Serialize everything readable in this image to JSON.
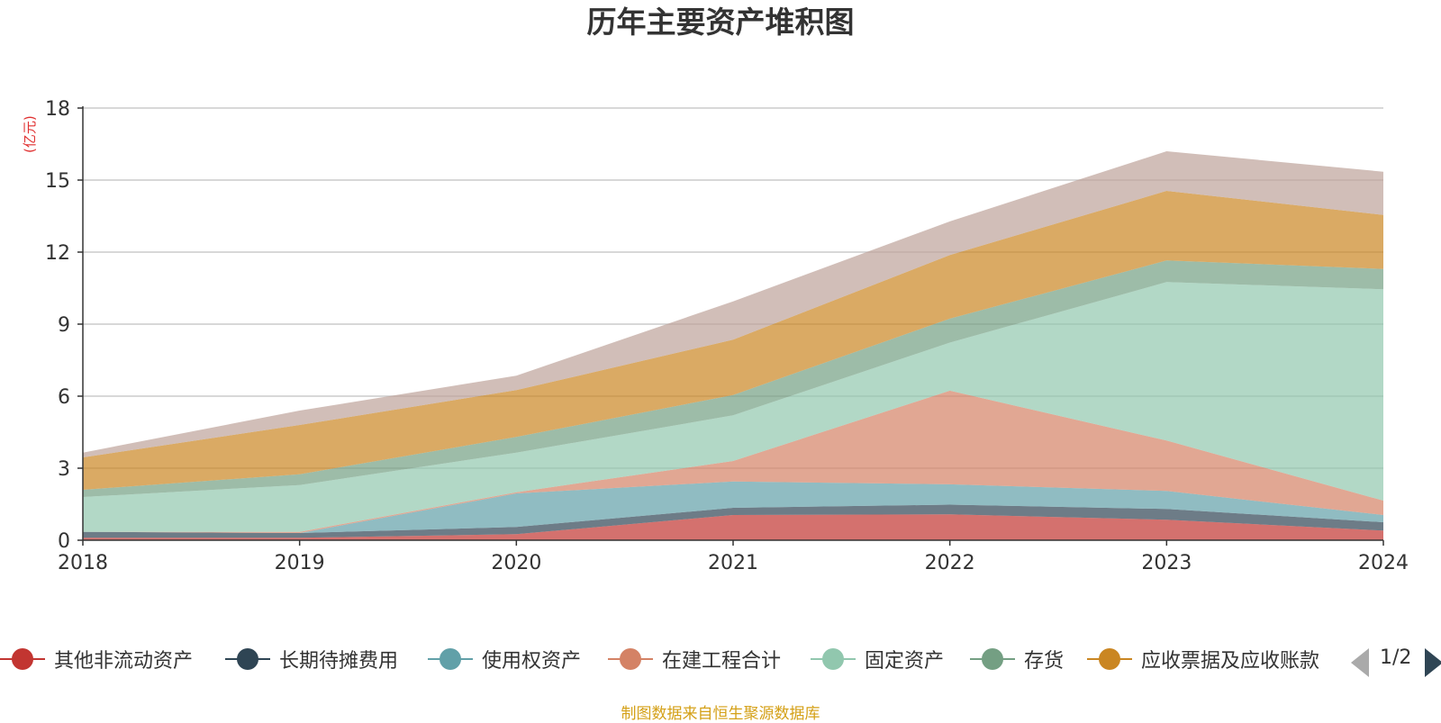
{
  "chart_data": {
    "type": "area",
    "stacked": true,
    "title": "历年主要资产堆积图",
    "unit_label": "(亿元)",
    "x": [
      "2018",
      "2019",
      "2020",
      "2021",
      "2022",
      "2023",
      "2024"
    ],
    "ylim": [
      0,
      18
    ],
    "yticks": [
      "0",
      "3",
      "6",
      "9",
      "12",
      "15",
      "18"
    ],
    "grid": true,
    "legend_position": "bottom",
    "series": [
      {
        "name": "其他非流动资产",
        "color": "#c23531",
        "values": [
          0.1,
          0.1,
          0.25,
          1.05,
          1.08,
          0.85,
          0.4
        ]
      },
      {
        "name": "长期待摊费用",
        "color": "#2f4554",
        "values": [
          0.25,
          0.2,
          0.3,
          0.3,
          0.4,
          0.45,
          0.35
        ]
      },
      {
        "name": "使用权资产",
        "color": "#61a0a8",
        "values": [
          0.0,
          0.0,
          1.4,
          1.1,
          0.85,
          0.75,
          0.3
        ]
      },
      {
        "name": "在建工程合计",
        "color": "#d48265",
        "values": [
          0.0,
          0.05,
          0.05,
          0.85,
          3.9,
          2.1,
          0.6
        ]
      },
      {
        "name": "固定资产",
        "color": "#91c7ae",
        "values": [
          1.45,
          1.95,
          1.65,
          1.9,
          2.0,
          6.6,
          8.8
        ]
      },
      {
        "name": "存货",
        "color": "#749f83",
        "values": [
          0.3,
          0.45,
          0.65,
          0.85,
          1.0,
          0.9,
          0.85
        ]
      },
      {
        "name": "应收票据及应收账款",
        "color": "#ca8622",
        "values": [
          1.35,
          2.05,
          1.95,
          2.3,
          2.65,
          2.9,
          2.25
        ]
      },
      {
        "name": "",
        "color": "#bda29a",
        "values": [
          0.2,
          0.6,
          0.6,
          1.6,
          1.4,
          1.65,
          1.8
        ]
      }
    ],
    "legend": {
      "page": "1/2",
      "visible_series": [
        "其他非流动资产",
        "长期待摊费用",
        "使用权资产",
        "在建工程合计",
        "固定资产",
        "存货",
        "应收票据及应收账款"
      ]
    },
    "source_note": "制图数据来自恒生聚源数据库"
  },
  "icons": {
    "prev": "triangle-left-icon",
    "next": "triangle-right-icon"
  }
}
